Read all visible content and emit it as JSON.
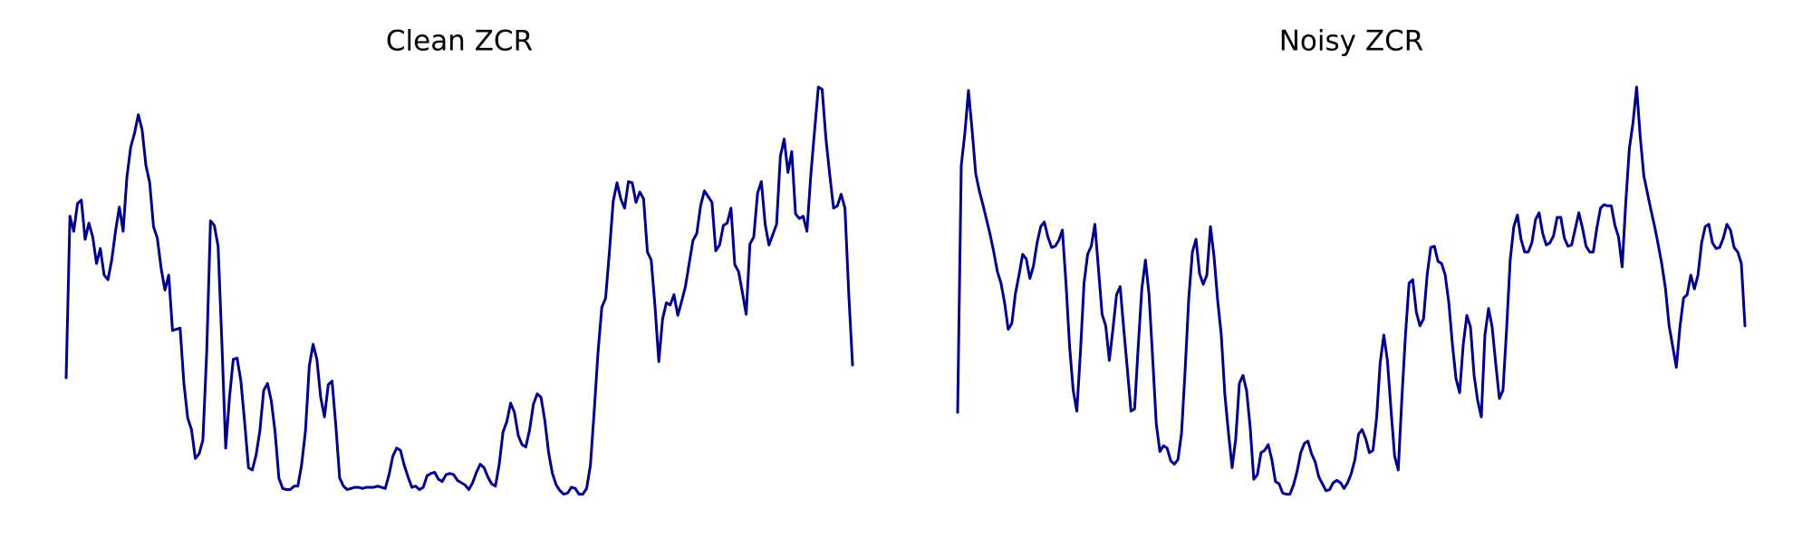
{
  "chart_data": [
    {
      "type": "line",
      "title": "Clean ZCR",
      "color": "#00008b",
      "ylim": [
        0.01,
        0.39
      ],
      "values": [
        0.123,
        0.263,
        0.25,
        0.274,
        0.277,
        0.243,
        0.257,
        0.245,
        0.222,
        0.235,
        0.212,
        0.208,
        0.225,
        0.25,
        0.271,
        0.25,
        0.297,
        0.323,
        0.335,
        0.351,
        0.338,
        0.307,
        0.292,
        0.254,
        0.244,
        0.218,
        0.199,
        0.212,
        0.164,
        0.165,
        0.166,
        0.118,
        0.088,
        0.078,
        0.053,
        0.057,
        0.069,
        0.145,
        0.259,
        0.255,
        0.237,
        0.153,
        0.062,
        0.106,
        0.139,
        0.14,
        0.12,
        0.084,
        0.045,
        0.043,
        0.056,
        0.077,
        0.112,
        0.118,
        0.103,
        0.076,
        0.036,
        0.027,
        0.026,
        0.026,
        0.029,
        0.029,
        0.048,
        0.077,
        0.133,
        0.152,
        0.139,
        0.106,
        0.089,
        0.117,
        0.12,
        0.081,
        0.036,
        0.029,
        0.026,
        0.027,
        0.028,
        0.028,
        0.027,
        0.028,
        0.028,
        0.028,
        0.029,
        0.028,
        0.027,
        0.039,
        0.055,
        0.062,
        0.06,
        0.047,
        0.037,
        0.028,
        0.029,
        0.026,
        0.028,
        0.038,
        0.04,
        0.041,
        0.035,
        0.033,
        0.039,
        0.04,
        0.039,
        0.034,
        0.032,
        0.03,
        0.026,
        0.032,
        0.041,
        0.048,
        0.045,
        0.037,
        0.031,
        0.029,
        0.048,
        0.076,
        0.085,
        0.101,
        0.093,
        0.073,
        0.065,
        0.063,
        0.078,
        0.1,
        0.109,
        0.106,
        0.086,
        0.058,
        0.04,
        0.03,
        0.025,
        0.022,
        0.023,
        0.028,
        0.027,
        0.022,
        0.022,
        0.027,
        0.047,
        0.094,
        0.145,
        0.184,
        0.192,
        0.232,
        0.276,
        0.292,
        0.278,
        0.27,
        0.293,
        0.292,
        0.275,
        0.284,
        0.278,
        0.232,
        0.225,
        0.185,
        0.137,
        0.174,
        0.188,
        0.186,
        0.195,
        0.177,
        0.189,
        0.202,
        0.222,
        0.242,
        0.248,
        0.272,
        0.285,
        0.28,
        0.275,
        0.233,
        0.238,
        0.255,
        0.257,
        0.27,
        0.221,
        0.215,
        0.197,
        0.178,
        0.239,
        0.245,
        0.283,
        0.293,
        0.256,
        0.238,
        0.247,
        0.256,
        0.315,
        0.33,
        0.301,
        0.319,
        0.265,
        0.261,
        0.263,
        0.25,
        0.298,
        0.337,
        0.375,
        0.373,
        0.33,
        0.299,
        0.27,
        0.272,
        0.282,
        0.27,
        0.196,
        0.134
      ]
    },
    {
      "type": "line",
      "title": "Noisy ZCR",
      "color": "#00008b",
      "ylim": [
        0.01,
        0.39
      ],
      "values": [
        0.093,
        0.307,
        0.335,
        0.372,
        0.338,
        0.3,
        0.285,
        0.273,
        0.26,
        0.247,
        0.232,
        0.215,
        0.205,
        0.188,
        0.165,
        0.17,
        0.196,
        0.212,
        0.23,
        0.226,
        0.209,
        0.22,
        0.24,
        0.254,
        0.258,
        0.245,
        0.236,
        0.237,
        0.242,
        0.251,
        0.205,
        0.15,
        0.112,
        0.094,
        0.145,
        0.205,
        0.23,
        0.237,
        0.256,
        0.217,
        0.178,
        0.168,
        0.138,
        0.165,
        0.195,
        0.202,
        0.165,
        0.13,
        0.094,
        0.096,
        0.15,
        0.2,
        0.225,
        0.195,
        0.14,
        0.083,
        0.059,
        0.064,
        0.062,
        0.051,
        0.048,
        0.052,
        0.075,
        0.13,
        0.192,
        0.232,
        0.243,
        0.213,
        0.204,
        0.212,
        0.254,
        0.228,
        0.19,
        0.16,
        0.108,
        0.075,
        0.045,
        0.07,
        0.118,
        0.125,
        0.112,
        0.08,
        0.035,
        0.039,
        0.058,
        0.06,
        0.065,
        0.052,
        0.033,
        0.031,
        0.023,
        0.022,
        0.022,
        0.03,
        0.042,
        0.058,
        0.066,
        0.068,
        0.057,
        0.05,
        0.037,
        0.031,
        0.025,
        0.026,
        0.032,
        0.034,
        0.032,
        0.027,
        0.032,
        0.04,
        0.052,
        0.074,
        0.078,
        0.07,
        0.058,
        0.06,
        0.088,
        0.136,
        0.16,
        0.138,
        0.095,
        0.055,
        0.043,
        0.105,
        0.16,
        0.205,
        0.208,
        0.18,
        0.168,
        0.174,
        0.212,
        0.236,
        0.237,
        0.224,
        0.222,
        0.212,
        0.188,
        0.152,
        0.122,
        0.11,
        0.152,
        0.177,
        0.167,
        0.125,
        0.103,
        0.089,
        0.16,
        0.183,
        0.167,
        0.135,
        0.105,
        0.112,
        0.165,
        0.225,
        0.254,
        0.264,
        0.243,
        0.232,
        0.232,
        0.24,
        0.26,
        0.266,
        0.248,
        0.238,
        0.24,
        0.246,
        0.262,
        0.262,
        0.244,
        0.237,
        0.238,
        0.252,
        0.266,
        0.253,
        0.237,
        0.232,
        0.232,
        0.253,
        0.27,
        0.273,
        0.272,
        0.272,
        0.255,
        0.245,
        0.219,
        0.275,
        0.322,
        0.344,
        0.375,
        0.332,
        0.298,
        0.283,
        0.268,
        0.254,
        0.238,
        0.221,
        0.2,
        0.168,
        0.15,
        0.132,
        0.167,
        0.192,
        0.195,
        0.212,
        0.2,
        0.212,
        0.24,
        0.254,
        0.256,
        0.24,
        0.235,
        0.236,
        0.244,
        0.256,
        0.251,
        0.236,
        0.232,
        0.222,
        0.168
      ]
    }
  ]
}
